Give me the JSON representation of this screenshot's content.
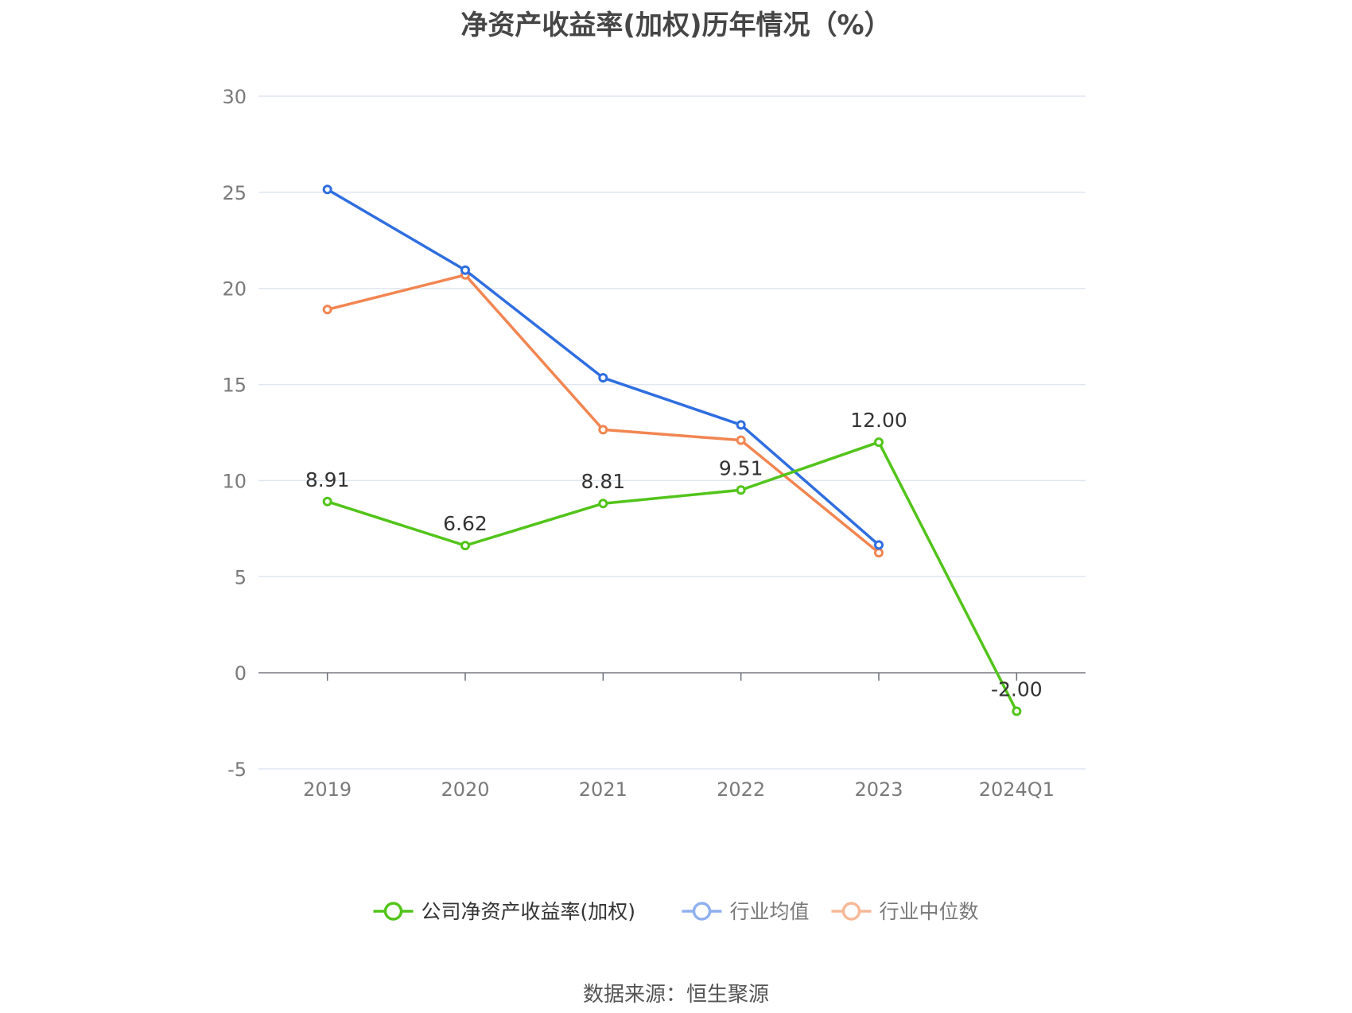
{
  "source_note": "数据来源：恒生聚源",
  "chart_data": {
    "type": "line",
    "title": "净资产收益率(加权)历年情况（%）",
    "xlabel": "",
    "ylabel": "",
    "categories": [
      "2019",
      "2020",
      "2021",
      "2022",
      "2023",
      "2024Q1"
    ],
    "ylim": [
      -5,
      30
    ],
    "yticks": [
      -5,
      0,
      5,
      10,
      15,
      20,
      25,
      30
    ],
    "grid": true,
    "legend_position": "bottom",
    "series": [
      {
        "name": "公司净资产收益率(加权)",
        "color": "#52c41a",
        "show_labels": true,
        "values": [
          8.91,
          6.62,
          8.81,
          9.51,
          12.0,
          -2.0
        ],
        "labels": [
          "8.91",
          "6.62",
          "8.81",
          "9.51",
          "12.00",
          "-2.00"
        ]
      },
      {
        "name": "行业均值",
        "color": "#2f6ee0",
        "legend_color": "#8fb0ef",
        "show_labels": false,
        "values": [
          25.15,
          20.95,
          15.35,
          12.9,
          6.65,
          null
        ]
      },
      {
        "name": "行业中位数",
        "color": "#f28551",
        "legend_color": "#f7b898",
        "show_labels": false,
        "values": [
          18.9,
          20.7,
          12.65,
          12.1,
          6.25,
          null
        ]
      }
    ]
  }
}
